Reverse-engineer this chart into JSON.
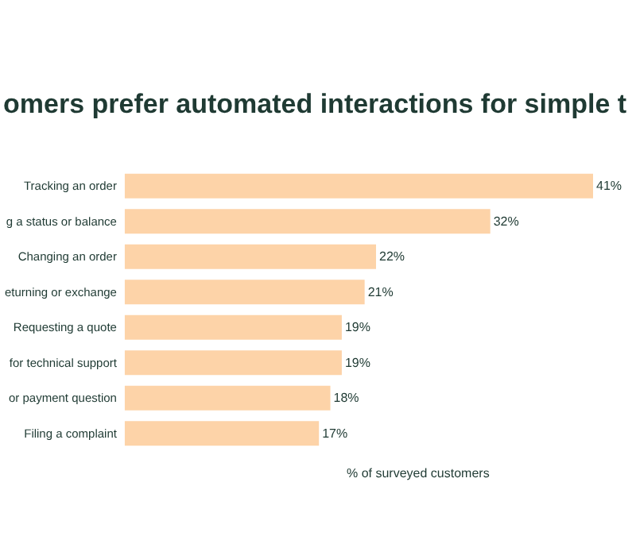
{
  "chart_data": {
    "type": "bar",
    "orientation": "horizontal",
    "title": "omers prefer automated interactions for simple t",
    "xlabel": "% of surveyed customers",
    "categories": [
      "Tracking an order",
      "g a status or balance",
      "Changing an order",
      "eturning or exchange",
      "Requesting a quote",
      "for technical support",
      "or payment question",
      "Filing a complaint"
    ],
    "values": [
      41,
      32,
      22,
      21,
      19,
      19,
      18,
      17
    ],
    "value_labels": [
      "41%",
      "32%",
      "22%",
      "21%",
      "19%",
      "19%",
      "18%",
      "17%"
    ],
    "color": "#fdd3a8"
  }
}
